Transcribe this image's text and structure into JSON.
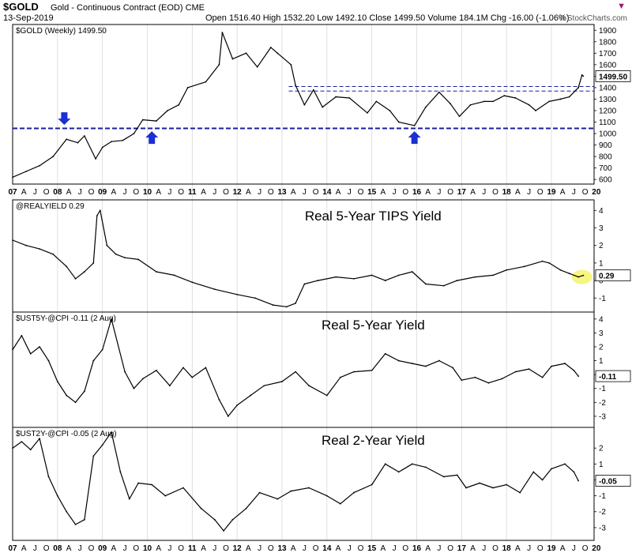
{
  "header": {
    "symbol": "$GOLD",
    "description": "Gold - Continuous Contract (EOD)  CME",
    "date": "13-Sep-2019",
    "ohlc": "Open 1516.40   High 1532.20   Low 1492.10   Close 1499.50   Volume 184.1M   Chg -16.00 (-1.06%)",
    "brand": "© StockCharts.com",
    "menu_icon": "caret-down-icon",
    "accent": "#9b1b6f"
  },
  "chart_data": [
    {
      "type": "line",
      "panel_label": "$GOLD (Weekly) 1499.50",
      "title": "",
      "ylim": [
        560,
        1950
      ],
      "yticks": [
        600,
        700,
        800,
        900,
        1000,
        1100,
        1200,
        1300,
        1400,
        1500,
        1600,
        1700,
        1800,
        1900
      ],
      "last_value": "1499.50",
      "x_axis": [
        "07",
        "A",
        "J",
        "O",
        "08",
        "A",
        "J",
        "O",
        "09",
        "A",
        "J",
        "O",
        "10",
        "A",
        "J",
        "O",
        "11",
        "A",
        "J",
        "O",
        "12",
        "A",
        "J",
        "O",
        "13",
        "A",
        "J",
        "O",
        "14",
        "A",
        "J",
        "O",
        "15",
        "A",
        "J",
        "O",
        "16",
        "A",
        "J",
        "O",
        "17",
        "A",
        "J",
        "O",
        "18",
        "A",
        "J",
        "O",
        "19",
        "A",
        "J",
        "O",
        "20"
      ],
      "x": [
        2007.0,
        2007.3,
        2007.6,
        2007.9,
        2008.2,
        2008.45,
        2008.6,
        2008.85,
        2009.0,
        2009.2,
        2009.45,
        2009.7,
        2009.9,
        2010.2,
        2010.45,
        2010.7,
        2010.9,
        2011.3,
        2011.6,
        2011.67,
        2011.9,
        2012.2,
        2012.45,
        2012.75,
        2012.9,
        2013.2,
        2013.3,
        2013.5,
        2013.7,
        2013.9,
        2014.2,
        2014.5,
        2014.9,
        2015.1,
        2015.4,
        2015.6,
        2015.95,
        2016.2,
        2016.5,
        2016.75,
        2016.95,
        2017.2,
        2017.5,
        2017.7,
        2017.95,
        2018.2,
        2018.5,
        2018.65,
        2018.95,
        2019.2,
        2019.4,
        2019.6,
        2019.68,
        2019.71
      ],
      "series": [
        {
          "values": [
            620,
            670,
            720,
            800,
            950,
            920,
            980,
            780,
            880,
            930,
            940,
            1000,
            1120,
            1110,
            1200,
            1250,
            1400,
            1450,
            1600,
            1880,
            1650,
            1700,
            1580,
            1750,
            1700,
            1600,
            1420,
            1250,
            1380,
            1230,
            1320,
            1310,
            1180,
            1280,
            1200,
            1100,
            1070,
            1230,
            1360,
            1260,
            1150,
            1250,
            1280,
            1280,
            1330,
            1310,
            1250,
            1200,
            1280,
            1300,
            1320,
            1400,
            1510,
            1500
          ]
        }
      ],
      "lines": [
        {
          "label": "support",
          "value": 1045,
          "style": "thick-dashed",
          "color": "#1c1c9c"
        },
        {
          "label": "resistance",
          "value": 1410,
          "style": "thin-dashed",
          "color": "#1c1c9c"
        },
        {
          "label": "resistance",
          "value": 1370,
          "style": "thin-dashed",
          "color": "#1c1c9c"
        }
      ],
      "arrows": [
        {
          "x": 2008.15,
          "value": 1075,
          "direction": "down",
          "color": "#1a2fd4"
        },
        {
          "x": 2010.1,
          "value": 1020,
          "direction": "up",
          "color": "#1a2fd4"
        },
        {
          "x": 2015.95,
          "value": 1020,
          "direction": "up",
          "color": "#1a2fd4"
        }
      ],
      "grid": false
    },
    {
      "type": "line",
      "panel_label": "@REALYIELD 0.29",
      "title": "Real 5-Year TIPS Yield",
      "ylim": [
        -1.8,
        4.6
      ],
      "yticks": [
        -1,
        0,
        1,
        2,
        3,
        4
      ],
      "last_value": "0.29",
      "x": [
        2007.0,
        2007.3,
        2007.6,
        2007.9,
        2008.2,
        2008.4,
        2008.6,
        2008.8,
        2008.88,
        2008.95,
        2009.1,
        2009.3,
        2009.5,
        2009.8,
        2010.2,
        2010.6,
        2011.0,
        2011.5,
        2012.0,
        2012.4,
        2012.8,
        2013.1,
        2013.3,
        2013.5,
        2013.8,
        2014.2,
        2014.6,
        2015.0,
        2015.3,
        2015.6,
        2015.9,
        2016.2,
        2016.6,
        2016.9,
        2017.3,
        2017.7,
        2018.0,
        2018.4,
        2018.8,
        2018.95,
        2019.2,
        2019.4,
        2019.6,
        2019.71
      ],
      "series": [
        {
          "values": [
            2.3,
            2.0,
            1.8,
            1.5,
            0.8,
            0.1,
            0.5,
            1.0,
            3.7,
            4.0,
            2.0,
            1.5,
            1.3,
            1.2,
            0.5,
            0.3,
            -0.1,
            -0.5,
            -0.8,
            -1.0,
            -1.4,
            -1.5,
            -1.3,
            -0.2,
            0.0,
            0.2,
            0.1,
            0.3,
            0.0,
            0.3,
            0.5,
            -0.2,
            -0.3,
            0.0,
            0.2,
            0.3,
            0.6,
            0.8,
            1.1,
            1.0,
            0.6,
            0.4,
            0.2,
            0.29
          ]
        }
      ],
      "highlight": {
        "x": 2019.68,
        "value": 0.2,
        "color": "#f4f46a"
      },
      "grid": false
    },
    {
      "type": "line",
      "panel_label": "$UST5Y-@CPI -0.11 (2 Aug)",
      "title": "Real 5-Year Yield",
      "ylim": [
        -3.8,
        4.5
      ],
      "yticks": [
        -3,
        -2,
        -1,
        0,
        1,
        2,
        3,
        4
      ],
      "last_value": "-0.11",
      "x": [
        2007.0,
        2007.2,
        2007.4,
        2007.6,
        2007.8,
        2008.0,
        2008.2,
        2008.4,
        2008.6,
        2008.8,
        2009.0,
        2009.2,
        2009.5,
        2009.7,
        2009.9,
        2010.2,
        2010.5,
        2010.8,
        2011.0,
        2011.3,
        2011.6,
        2011.8,
        2012.0,
        2012.3,
        2012.6,
        2013.0,
        2013.3,
        2013.6,
        2014.0,
        2014.3,
        2014.6,
        2015.0,
        2015.3,
        2015.6,
        2015.9,
        2016.2,
        2016.5,
        2016.8,
        2017.0,
        2017.3,
        2017.6,
        2017.9,
        2018.2,
        2018.5,
        2018.8,
        2019.0,
        2019.3,
        2019.5,
        2019.6
      ],
      "series": [
        {
          "values": [
            1.8,
            2.8,
            1.5,
            2.0,
            1.0,
            -0.5,
            -1.5,
            -2.0,
            -1.2,
            1.0,
            1.8,
            4.0,
            0.2,
            -1.0,
            -0.3,
            0.3,
            -0.8,
            0.5,
            -0.2,
            0.5,
            -1.8,
            -3.0,
            -2.2,
            -1.5,
            -0.8,
            -0.5,
            0.2,
            -0.8,
            -1.5,
            -0.2,
            0.2,
            0.3,
            1.5,
            1.0,
            0.8,
            0.6,
            1.0,
            0.5,
            -0.4,
            -0.2,
            -0.6,
            -0.3,
            0.2,
            0.4,
            -0.2,
            0.6,
            0.8,
            0.3,
            -0.11
          ]
        }
      ],
      "grid": false
    },
    {
      "type": "line",
      "panel_label": "$UST2Y-@CPI -0.05 (2 Aug)",
      "title": "Real 2-Year Yield",
      "ylim": [
        -3.8,
        3.3
      ],
      "yticks": [
        -3,
        -2,
        -1,
        0,
        1,
        2
      ],
      "last_value": "-0.05",
      "x": [
        2007.0,
        2007.2,
        2007.4,
        2007.6,
        2007.8,
        2008.0,
        2008.2,
        2008.4,
        2008.6,
        2008.8,
        2009.0,
        2009.2,
        2009.4,
        2009.6,
        2009.8,
        2010.1,
        2010.4,
        2010.8,
        2011.2,
        2011.5,
        2011.7,
        2011.9,
        2012.2,
        2012.5,
        2012.9,
        2013.2,
        2013.6,
        2014.0,
        2014.3,
        2014.6,
        2015.0,
        2015.3,
        2015.6,
        2015.9,
        2016.2,
        2016.6,
        2016.9,
        2017.1,
        2017.4,
        2017.7,
        2018.0,
        2018.3,
        2018.6,
        2018.8,
        2019.0,
        2019.3,
        2019.5,
        2019.6
      ],
      "series": [
        {
          "values": [
            2.0,
            2.4,
            1.9,
            2.6,
            0.2,
            -1.0,
            -2.0,
            -2.8,
            -2.5,
            1.5,
            2.2,
            3.0,
            0.5,
            -1.2,
            -0.2,
            -0.3,
            -1.0,
            -0.5,
            -1.8,
            -2.5,
            -3.2,
            -2.5,
            -1.8,
            -0.8,
            -1.2,
            -0.7,
            -0.5,
            -1.0,
            -1.5,
            -0.8,
            -0.3,
            1.0,
            0.5,
            1.0,
            0.8,
            0.2,
            0.3,
            -0.5,
            -0.2,
            -0.5,
            -0.3,
            -0.8,
            0.5,
            0.0,
            0.7,
            1.0,
            0.5,
            -0.05
          ]
        }
      ],
      "grid": false
    }
  ]
}
